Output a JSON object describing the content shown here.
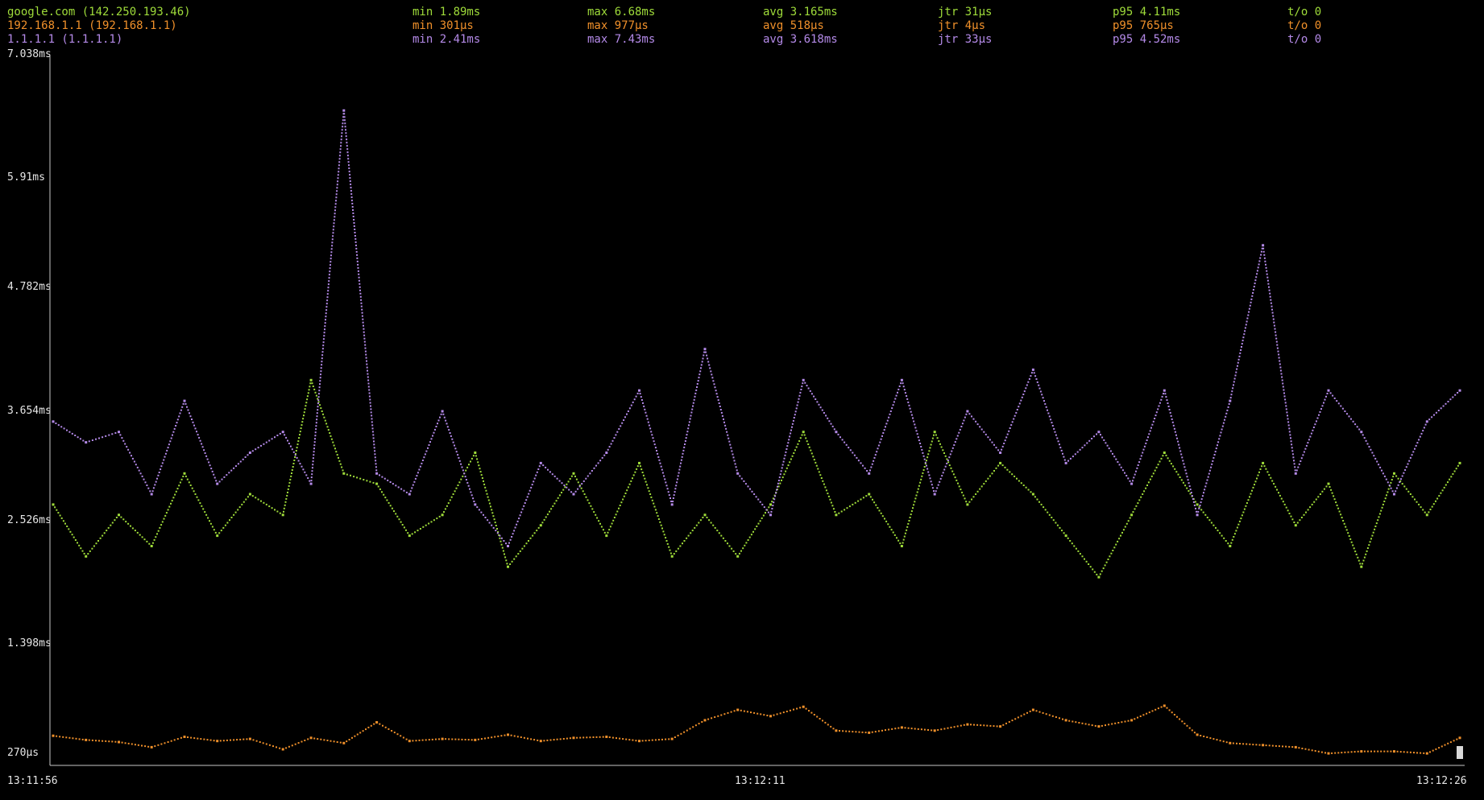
{
  "series": [
    {
      "host": "google.com (142.250.193.46)",
      "min": "min 1.89ms",
      "max": "max 6.68ms",
      "avg": "avg 3.165ms",
      "jtr": "jtr 31µs",
      "p95": "p95 4.11ms",
      "to": "t/o 0",
      "color": "#9fdc3a"
    },
    {
      "host": "192.168.1.1 (192.168.1.1)",
      "min": "min 301µs",
      "max": "max 977µs",
      "avg": "avg 518µs",
      "jtr": "jtr 4µs",
      "p95": "p95 765µs",
      "to": "t/o 0",
      "color": "#f0902a"
    },
    {
      "host": "1.1.1.1 (1.1.1.1)",
      "min": "min 2.41ms",
      "max": "max 7.43ms",
      "avg": "avg 3.618ms",
      "jtr": "jtr 33µs",
      "p95": "p95 4.52ms",
      "to": "t/o 0",
      "color": "#b48ae8"
    }
  ],
  "chart_data": {
    "type": "scatter",
    "yticks": [
      {
        "label": "7.038ms",
        "value": 7.038
      },
      {
        "label": "5.91ms",
        "value": 5.91
      },
      {
        "label": "4.782ms",
        "value": 4.782
      },
      {
        "label": "3.654ms",
        "value": 3.654
      },
      {
        "label": "2.526ms",
        "value": 2.526
      },
      {
        "label": "1.398ms",
        "value": 1.398
      },
      {
        "label": "270µs",
        "value": 0.27
      }
    ],
    "xticks": [
      {
        "label": "13:11:56",
        "value": 0
      },
      {
        "label": "13:12:11",
        "value": 15
      },
      {
        "label": "13:12:26",
        "value": 30
      }
    ],
    "xlim": [
      0,
      30
    ],
    "ylim": [
      0.27,
      7.038
    ],
    "y_unit": "ms",
    "grid": false,
    "series_points": [
      {
        "name": "google.com (142.250.193.46)",
        "color": "#9fdc3a",
        "x": [
          0,
          0.7,
          1.4,
          2.1,
          2.8,
          3.5,
          4.2,
          4.9,
          5.5,
          6.2,
          6.9,
          7.6,
          8.3,
          9,
          9.7,
          10.4,
          11.1,
          11.8,
          12.5,
          13.2,
          13.9,
          14.6,
          15.3,
          16,
          16.7,
          17.4,
          18.1,
          18.8,
          19.5,
          20.2,
          20.9,
          21.6,
          22.3,
          23,
          23.7,
          24.4,
          25.1,
          25.8,
          26.5,
          27.2,
          27.9,
          28.6,
          29.3,
          30
        ],
        "y": [
          2.7,
          2.2,
          2.6,
          2.3,
          3.0,
          2.4,
          2.8,
          2.6,
          3.9,
          3.0,
          2.9,
          2.4,
          2.6,
          3.2,
          2.1,
          2.5,
          3.0,
          2.4,
          3.1,
          2.2,
          2.6,
          2.2,
          2.7,
          3.4,
          2.6,
          2.8,
          2.3,
          3.4,
          2.7,
          3.1,
          2.8,
          2.4,
          2.0,
          2.6,
          3.2,
          2.7,
          2.3,
          3.1,
          2.5,
          2.9,
          2.1,
          3.0,
          2.6,
          3.1
        ]
      },
      {
        "name": "192.168.1.1 (192.168.1.1)",
        "color": "#f0902a",
        "x": [
          0,
          0.7,
          1.4,
          2.1,
          2.8,
          3.5,
          4.2,
          4.9,
          5.5,
          6.2,
          6.9,
          7.6,
          8.3,
          9,
          9.7,
          10.4,
          11.1,
          11.8,
          12.5,
          13.2,
          13.9,
          14.6,
          15.3,
          16,
          16.7,
          17.4,
          18.1,
          18.8,
          19.5,
          20.2,
          20.9,
          21.6,
          22.3,
          23,
          23.7,
          24.4,
          25.1,
          25.8,
          26.5,
          27.2,
          27.9,
          28.6,
          29.3,
          30
        ],
        "y": [
          0.47,
          0.43,
          0.41,
          0.36,
          0.46,
          0.42,
          0.44,
          0.34,
          0.45,
          0.4,
          0.6,
          0.42,
          0.44,
          0.43,
          0.48,
          0.42,
          0.45,
          0.46,
          0.42,
          0.44,
          0.62,
          0.72,
          0.66,
          0.75,
          0.52,
          0.5,
          0.55,
          0.52,
          0.58,
          0.56,
          0.72,
          0.62,
          0.56,
          0.62,
          0.76,
          0.48,
          0.4,
          0.38,
          0.36,
          0.3,
          0.32,
          0.32,
          0.3,
          0.45
        ]
      },
      {
        "name": "1.1.1.1 (1.1.1.1)",
        "color": "#b48ae8",
        "x": [
          0,
          0.7,
          1.4,
          2.1,
          2.8,
          3.5,
          4.2,
          4.9,
          5.5,
          6.2,
          6.9,
          7.6,
          8.3,
          9,
          9.7,
          10.4,
          11.1,
          11.8,
          12.5,
          13.2,
          13.9,
          14.6,
          15.3,
          16,
          16.7,
          17.4,
          18.1,
          18.8,
          19.5,
          20.2,
          20.9,
          21.6,
          22.3,
          23,
          23.7,
          24.4,
          25.1,
          25.8,
          26.5,
          27.2,
          27.9,
          28.6,
          29.3,
          30
        ],
        "y": [
          3.5,
          3.3,
          3.4,
          2.8,
          3.7,
          2.9,
          3.2,
          3.4,
          2.9,
          6.5,
          3.0,
          2.8,
          3.6,
          2.7,
          2.3,
          3.1,
          2.8,
          3.2,
          3.8,
          2.7,
          4.2,
          3.0,
          2.6,
          3.9,
          3.4,
          3.0,
          3.9,
          2.8,
          3.6,
          3.2,
          4.0,
          3.1,
          3.4,
          2.9,
          3.8,
          2.6,
          3.7,
          5.2,
          3.0,
          3.8,
          3.4,
          2.8,
          3.5,
          3.8
        ]
      }
    ]
  }
}
